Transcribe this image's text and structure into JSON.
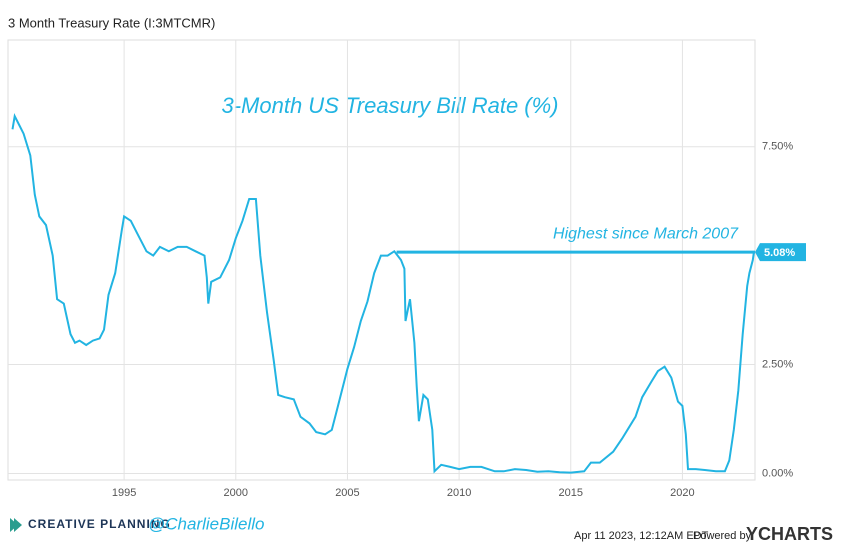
{
  "header": "3 Month Treasury Rate (I:3MTCMR)",
  "chart_data": {
    "type": "line",
    "title": "3-Month US Treasury Bill Rate (%)",
    "x": [
      1990.0,
      1990.1,
      1990.3,
      1990.5,
      1990.8,
      1991.0,
      1991.2,
      1991.5,
      1991.8,
      1992.0,
      1992.3,
      1992.6,
      1992.8,
      1993.0,
      1993.3,
      1993.6,
      1993.9,
      1994.1,
      1994.3,
      1994.6,
      1994.9,
      1995.0,
      1995.3,
      1995.6,
      1996.0,
      1996.3,
      1996.6,
      1997.0,
      1997.4,
      1997.8,
      1998.2,
      1998.6,
      1998.7,
      1998.77,
      1998.9,
      1999.3,
      1999.7,
      2000.0,
      2000.3,
      2000.6,
      2000.9,
      2001.1,
      2001.4,
      2001.7,
      2001.9,
      2002.2,
      2002.6,
      2002.9,
      2003.3,
      2003.6,
      2004.0,
      2004.3,
      2004.5,
      2004.8,
      2005.0,
      2005.3,
      2005.6,
      2005.9,
      2006.2,
      2006.5,
      2006.8,
      2007.1,
      2007.4,
      2007.55,
      2007.6,
      2007.8,
      2008.0,
      2008.1,
      2008.2,
      2008.4,
      2008.6,
      2008.8,
      2008.9,
      2009.2,
      2009.6,
      2010.0,
      2010.5,
      2011.0,
      2011.6,
      2012.0,
      2012.5,
      2013.0,
      2013.5,
      2014.0,
      2014.5,
      2015.0,
      2015.6,
      2015.9,
      2016.3,
      2016.9,
      2017.3,
      2017.6,
      2017.9,
      2018.2,
      2018.6,
      2018.9,
      2019.2,
      2019.5,
      2019.8,
      2020.0,
      2020.15,
      2020.25,
      2020.6,
      2021.0,
      2021.5,
      2021.9,
      2022.1,
      2022.3,
      2022.5,
      2022.7,
      2022.9,
      2023.0,
      2023.15,
      2023.2
    ],
    "series": [
      {
        "name": "3 Month Treasury Rate",
        "color": "#22b4e2",
        "values": [
          7.9,
          8.2,
          8.0,
          7.8,
          7.3,
          6.4,
          5.9,
          5.7,
          5.0,
          4.0,
          3.9,
          3.2,
          3.0,
          3.05,
          2.95,
          3.05,
          3.1,
          3.3,
          4.1,
          4.6,
          5.6,
          5.9,
          5.8,
          5.5,
          5.1,
          5.0,
          5.2,
          5.1,
          5.2,
          5.2,
          5.1,
          5.0,
          4.5,
          3.9,
          4.4,
          4.5,
          4.9,
          5.4,
          5.8,
          6.3,
          6.3,
          5.0,
          3.7,
          2.6,
          1.8,
          1.75,
          1.7,
          1.3,
          1.15,
          0.95,
          0.9,
          1.0,
          1.4,
          2.0,
          2.4,
          2.9,
          3.5,
          3.95,
          4.6,
          5.0,
          5.0,
          5.1,
          4.9,
          4.7,
          3.5,
          4.0,
          3.0,
          2.0,
          1.2,
          1.8,
          1.7,
          1.0,
          0.05,
          0.2,
          0.15,
          0.1,
          0.15,
          0.15,
          0.05,
          0.05,
          0.1,
          0.08,
          0.04,
          0.05,
          0.03,
          0.02,
          0.05,
          0.25,
          0.25,
          0.5,
          0.8,
          1.05,
          1.3,
          1.75,
          2.1,
          2.35,
          2.45,
          2.2,
          1.65,
          1.55,
          0.9,
          0.1,
          0.1,
          0.08,
          0.05,
          0.05,
          0.3,
          1.0,
          1.9,
          3.2,
          4.3,
          4.6,
          4.9,
          5.08
        ]
      }
    ],
    "xlim": [
      1989.8,
      2023.25
    ],
    "xticks": [
      1995,
      2000,
      2005,
      2010,
      2015,
      2020
    ],
    "ylim": [
      -0.15,
      9.95
    ],
    "yticks": [
      {
        "value": 0,
        "label": "0.00%"
      },
      {
        "value": 2.5,
        "label": "2.50%"
      },
      {
        "value": 7.5,
        "label": "7.50%"
      }
    ],
    "grid": true,
    "annotation": {
      "text": "Highest since March 2007",
      "from_x": 2007.2,
      "value": 5.08,
      "label": "5.08%"
    }
  },
  "footer": {
    "brand": "CREATIVE PLANNING",
    "handle": "@CharlieBilello",
    "timestamp": "Apr 11 2023, 12:12AM EDT.",
    "powered": "Powered by",
    "logo": "YCHARTS"
  }
}
